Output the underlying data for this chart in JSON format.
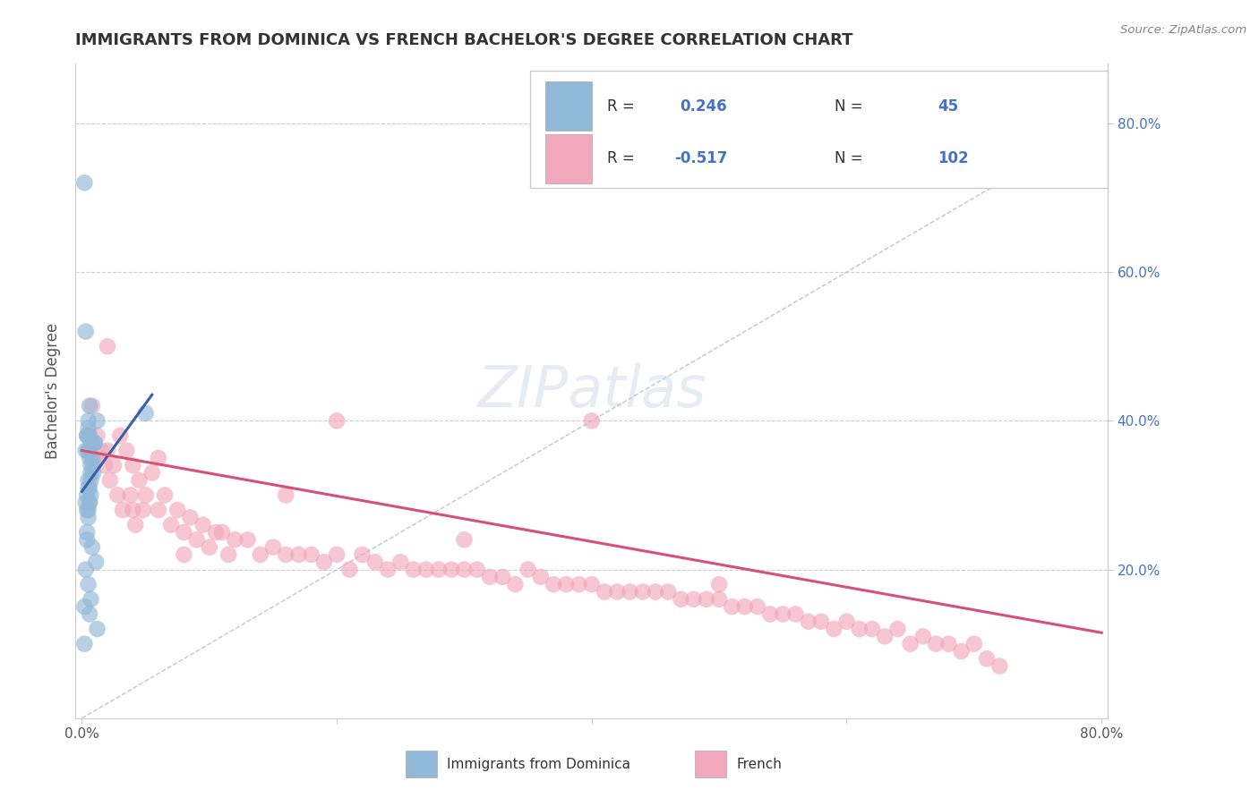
{
  "title": "IMMIGRANTS FROM DOMINICA VS FRENCH BACHELOR'S DEGREE CORRELATION CHART",
  "source": "Source: ZipAtlas.com",
  "ylabel": "Bachelor's Degree",
  "xlim": [
    -0.005,
    0.805
  ],
  "ylim": [
    0.0,
    0.88
  ],
  "xticks": [
    0.0,
    0.2,
    0.4,
    0.6,
    0.8
  ],
  "xticklabels": [
    "0.0%",
    "",
    "",
    "",
    "80.0%"
  ],
  "yticks_right": [
    0.2,
    0.4,
    0.6,
    0.8
  ],
  "yticklabels_right": [
    "20.0%",
    "40.0%",
    "60.0%",
    "80.0%"
  ],
  "blue_color": "#92b8d8",
  "pink_color": "#f2a8bc",
  "blue_line_color": "#3a5fa8",
  "pink_line_color": "#d8507a",
  "watermark": "ZIPatlas",
  "blue_scatter_x": [
    0.002,
    0.003,
    0.003,
    0.004,
    0.004,
    0.004,
    0.004,
    0.005,
    0.005,
    0.005,
    0.005,
    0.005,
    0.005,
    0.006,
    0.006,
    0.006,
    0.006,
    0.006,
    0.007,
    0.007,
    0.007,
    0.007,
    0.008,
    0.008,
    0.008,
    0.009,
    0.009,
    0.01,
    0.01,
    0.011,
    0.012,
    0.012,
    0.003,
    0.002,
    0.004,
    0.05,
    0.005,
    0.006,
    0.007,
    0.005,
    0.006,
    0.004,
    0.005,
    0.003,
    0.002
  ],
  "blue_scatter_y": [
    0.72,
    0.52,
    0.36,
    0.38,
    0.38,
    0.3,
    0.28,
    0.39,
    0.4,
    0.36,
    0.32,
    0.31,
    0.28,
    0.42,
    0.35,
    0.31,
    0.29,
    0.14,
    0.34,
    0.33,
    0.3,
    0.16,
    0.37,
    0.35,
    0.23,
    0.33,
    0.34,
    0.37,
    0.37,
    0.21,
    0.4,
    0.12,
    0.2,
    0.15,
    0.25,
    0.41,
    0.27,
    0.29,
    0.32,
    0.36,
    0.38,
    0.24,
    0.18,
    0.29,
    0.1
  ],
  "pink_scatter_x": [
    0.005,
    0.008,
    0.01,
    0.012,
    0.015,
    0.018,
    0.02,
    0.022,
    0.025,
    0.028,
    0.03,
    0.032,
    0.035,
    0.038,
    0.04,
    0.042,
    0.045,
    0.048,
    0.05,
    0.055,
    0.06,
    0.065,
    0.07,
    0.075,
    0.08,
    0.085,
    0.09,
    0.095,
    0.1,
    0.105,
    0.11,
    0.115,
    0.12,
    0.13,
    0.14,
    0.15,
    0.16,
    0.17,
    0.18,
    0.19,
    0.2,
    0.21,
    0.22,
    0.23,
    0.24,
    0.25,
    0.26,
    0.27,
    0.28,
    0.29,
    0.3,
    0.31,
    0.32,
    0.33,
    0.34,
    0.35,
    0.36,
    0.37,
    0.38,
    0.39,
    0.4,
    0.41,
    0.42,
    0.43,
    0.44,
    0.45,
    0.46,
    0.47,
    0.48,
    0.49,
    0.5,
    0.51,
    0.52,
    0.53,
    0.54,
    0.55,
    0.56,
    0.57,
    0.58,
    0.59,
    0.6,
    0.61,
    0.62,
    0.63,
    0.64,
    0.65,
    0.66,
    0.67,
    0.68,
    0.69,
    0.7,
    0.71,
    0.72,
    0.02,
    0.04,
    0.06,
    0.08,
    0.16,
    0.2,
    0.3,
    0.4,
    0.5
  ],
  "pink_scatter_y": [
    0.38,
    0.42,
    0.35,
    0.38,
    0.36,
    0.34,
    0.36,
    0.32,
    0.34,
    0.3,
    0.38,
    0.28,
    0.36,
    0.3,
    0.34,
    0.26,
    0.32,
    0.28,
    0.3,
    0.33,
    0.28,
    0.3,
    0.26,
    0.28,
    0.25,
    0.27,
    0.24,
    0.26,
    0.23,
    0.25,
    0.25,
    0.22,
    0.24,
    0.24,
    0.22,
    0.23,
    0.22,
    0.22,
    0.22,
    0.21,
    0.22,
    0.2,
    0.22,
    0.21,
    0.2,
    0.21,
    0.2,
    0.2,
    0.2,
    0.2,
    0.2,
    0.2,
    0.19,
    0.19,
    0.18,
    0.2,
    0.19,
    0.18,
    0.18,
    0.18,
    0.18,
    0.17,
    0.17,
    0.17,
    0.17,
    0.17,
    0.17,
    0.16,
    0.16,
    0.16,
    0.16,
    0.15,
    0.15,
    0.15,
    0.14,
    0.14,
    0.14,
    0.13,
    0.13,
    0.12,
    0.13,
    0.12,
    0.12,
    0.11,
    0.12,
    0.1,
    0.11,
    0.1,
    0.1,
    0.09,
    0.1,
    0.08,
    0.07,
    0.5,
    0.28,
    0.35,
    0.22,
    0.3,
    0.4,
    0.24,
    0.4,
    0.18
  ],
  "blue_line_x": [
    0.0,
    0.055
  ],
  "blue_line_y": [
    0.305,
    0.435
  ],
  "pink_line_x": [
    0.0,
    0.8
  ],
  "pink_line_y": [
    0.36,
    0.115
  ],
  "ref_line_x": [
    0.0,
    0.8
  ],
  "ref_line_y": [
    0.0,
    0.8
  ],
  "background_color": "#ffffff",
  "grid_color": "#d0d0d0",
  "title_color": "#333333",
  "tick_color": "#4472c4"
}
